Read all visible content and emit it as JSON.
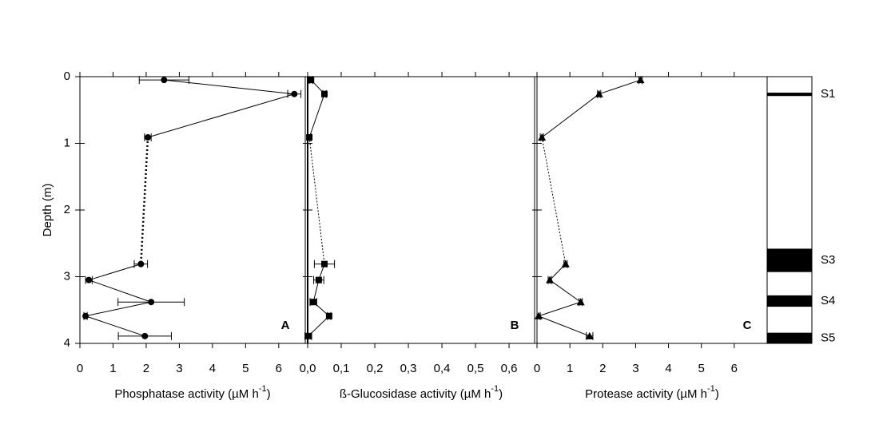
{
  "chart_data": [
    {
      "type": "profile",
      "panel_label": "A",
      "marker": "circle",
      "color": "#000000",
      "ylabel": "Depth (m)",
      "xlabel": "Phosphatase activity (µM h",
      "xlabel_sup": "-1",
      "xlabel_end": ")",
      "depth": [
        0.05,
        0.26,
        0.91,
        2.81,
        3.05,
        3.38,
        3.59,
        3.89
      ],
      "values": [
        2.54,
        6.47,
        2.05,
        1.84,
        0.27,
        2.15,
        0.17,
        1.96
      ],
      "errors": [
        0.75,
        0.2,
        0.1,
        0.2,
        0.1,
        1.0,
        0.05,
        0.8
      ],
      "dotted_segments": [
        2
      ],
      "xlim": [
        0,
        6.8
      ],
      "xticks": [
        0,
        1,
        2,
        3,
        4,
        5,
        6
      ],
      "ylim": [
        0,
        4
      ],
      "yticks": [
        0,
        1,
        2,
        3,
        4
      ],
      "y_inverted": true,
      "ytick_labels": true
    },
    {
      "type": "profile",
      "panel_label": "B",
      "marker": "square",
      "color": "#000000",
      "xlabel": "ß-Glucosidase activity (µM h",
      "xlabel_sup": "-1",
      "xlabel_end": ")",
      "depth": [
        0.05,
        0.26,
        0.91,
        2.81,
        3.05,
        3.38,
        3.59,
        3.89
      ],
      "values": [
        0.01,
        0.05,
        0.005,
        0.05,
        0.033,
        0.017,
        0.064,
        0.002
      ],
      "errors": [
        0.005,
        0.005,
        0.005,
        0.03,
        0.015,
        0.01,
        0.005,
        0.01
      ],
      "dotted_segments": [
        2
      ],
      "xlim": [
        0,
        0.676
      ],
      "xticks": [
        {
          "value": 0,
          "label": "0,0"
        },
        {
          "value": 0.1,
          "label": "0,1"
        },
        {
          "value": 0.2,
          "label": "0,2"
        },
        {
          "value": 0.3,
          "label": "0,3"
        },
        {
          "value": 0.4,
          "label": "0,4"
        },
        {
          "value": 0.5,
          "label": "0,5"
        },
        {
          "value": 0.6,
          "label": "0,6"
        }
      ],
      "ylim": [
        0,
        4
      ],
      "yticks": [
        0,
        1,
        2,
        3,
        4
      ],
      "y_inverted": true,
      "ytick_labels": false
    },
    {
      "type": "profile",
      "panel_label": "C",
      "marker": "triangle",
      "color": "#000000",
      "xlabel": "Protease activity (µM h",
      "xlabel_sup": "-1",
      "xlabel_end": ")",
      "depth": [
        0.05,
        0.26,
        0.91,
        2.81,
        3.05,
        3.38,
        3.59,
        3.89
      ],
      "values": [
        3.15,
        1.89,
        0.15,
        0.87,
        0.39,
        1.33,
        0.05,
        1.6
      ],
      "errors": [
        0.05,
        0.05,
        0.05,
        0.05,
        0.05,
        0.05,
        0.05,
        0.1
      ],
      "dotted_segments": [
        2
      ],
      "xlim": [
        0,
        7
      ],
      "xticks": [
        0,
        1,
        2,
        3,
        4,
        5,
        6
      ],
      "ylim": [
        0,
        4
      ],
      "yticks": [
        0,
        1,
        2,
        3,
        4
      ],
      "y_inverted": true,
      "ytick_labels": false
    },
    {
      "type": "strata",
      "color": "#000000",
      "ylim": [
        0,
        4
      ],
      "labels": [
        "S1",
        "S3",
        "S4",
        "S5"
      ],
      "tops": [
        0.24,
        2.58,
        3.28,
        3.84
      ],
      "bottoms": [
        0.29,
        2.93,
        3.45,
        4.0
      ]
    }
  ]
}
